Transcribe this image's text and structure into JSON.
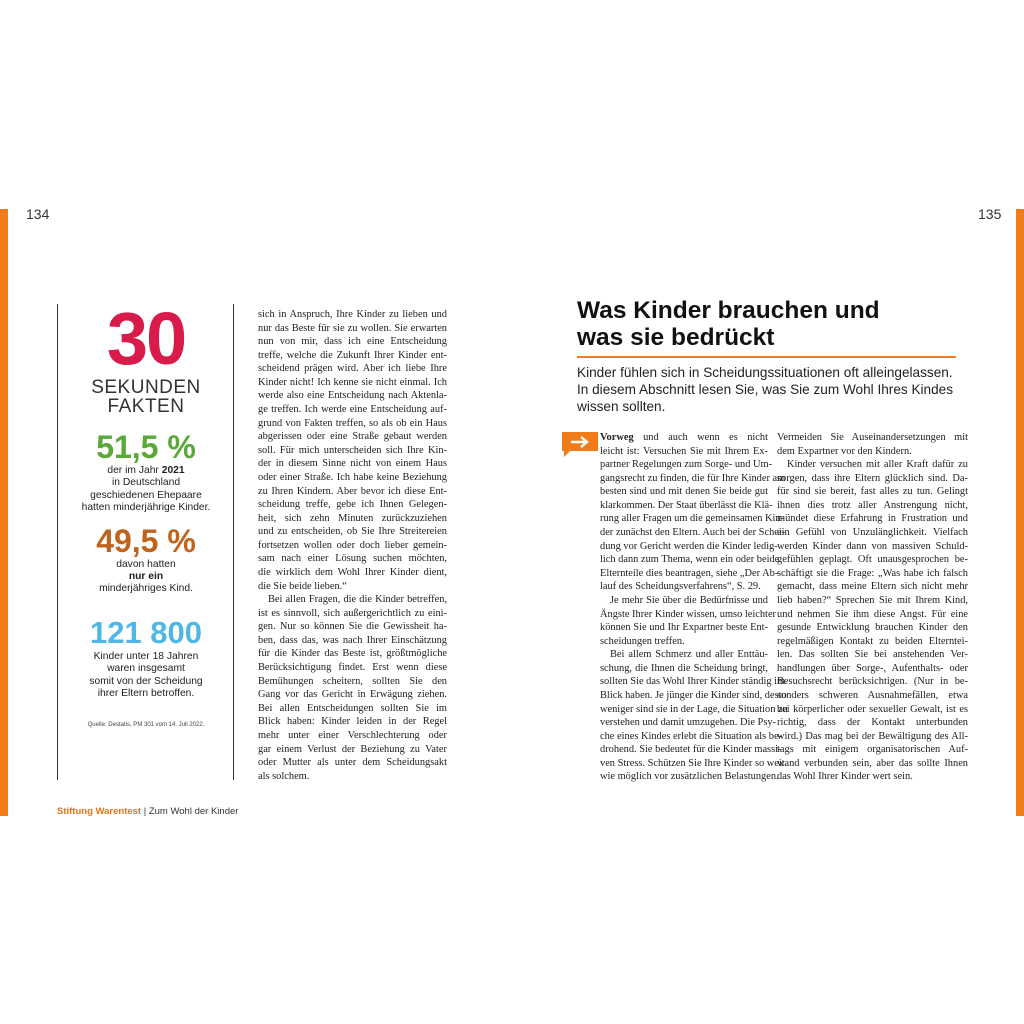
{
  "page_numbers": {
    "left": "134",
    "right": "135"
  },
  "sidebar": {
    "big_number": "30",
    "heading": [
      "SEKUNDEN",
      "FAKTEN"
    ],
    "fact1": {
      "figure": "51,5 %",
      "pre": "der im Jahr",
      "bold": "2021",
      "lines": [
        "in Deutschland",
        "geschiedenen Ehepaare",
        "hatten minderjährige Kinder."
      ]
    },
    "fact2": {
      "figure": "49,5 %",
      "line1": "davon hatten",
      "bold": "nur ein",
      "line3": "minderjähriges Kind."
    },
    "fact3": {
      "figure": "121 800",
      "lines": [
        "Kinder unter 18 Jahren",
        "waren insgesamt",
        "somit von der Scheidung",
        "ihrer Eltern betroffen."
      ]
    },
    "source": "Quelle: Destatis, PM 301 vom 14. Juli 2022."
  },
  "left_column": [
    [
      "sich in Anspruch, Ihre Kinder zu lieben und",
      "nur das Beste für sie zu wollen. Sie erwarten",
      "nun von mir, dass ich eine Entscheidung",
      "treffe, welche die Zukunft Ihrer Kinder ent-",
      "scheidend prägen wird. Aber ich liebe Ihre",
      "Kinder nicht! Ich kenne sie nicht einmal. Ich",
      "werde also eine Entscheidung nach Aktenla-",
      "ge treffen. Ich werde eine Entscheidung auf-",
      "grund von Fakten treffen, so als ob ein Haus",
      "abgerissen oder eine Straße gebaut werden",
      "soll. Für mich unterscheiden sich Ihre Kin-",
      "der in diesem Sinne nicht von einem Haus",
      "oder einer Straße. Ich habe keine Beziehung",
      "zu Ihren Kindern. Aber bevor ich diese Ent-",
      "scheidung treffe, gebe ich Ihnen Gelegen-",
      "heit, sich zehn Minuten zurückzuziehen",
      "und zu entscheiden, ob Sie Ihre Streitereien",
      "fortsetzen wollen oder doch lieber gemein-",
      "sam nach einer Lösung suchen möchten,",
      "die wirklich dem Wohl Ihrer Kinder dient,",
      "die Sie beide lieben.“"
    ],
    [
      "Bei allen Fragen, die die Kinder betreffen,",
      "ist es sinnvoll, sich außergerichtlich zu eini-",
      "gen. Nur so können Sie die Gewissheit ha-",
      "ben, dass das, was nach Ihrer Einschätzung",
      "für die Kinder das Beste ist, größtmögliche",
      "Berücksichtigung findet. Erst wenn diese",
      "Bemühungen scheitern, sollten Sie den",
      "Gang vor das Gericht in Erwägung ziehen.",
      "Bei allen Entscheidungen sollten Sie im",
      "Blick haben: Kinder leiden in der Regel",
      "mehr unter einer Verschlechterung oder",
      "gar einem Verlust der Beziehung zu Vater",
      "oder Mutter als unter dem Scheidungsakt",
      "als solchem."
    ]
  ],
  "title": [
    "Was Kinder brauchen und",
    "was sie bedrückt"
  ],
  "intro": [
    "Kinder fühlen sich in Scheidungssituationen oft alleingelassen.",
    "In diesem Abschnitt lesen Sie, was Sie zum Wohl Ihres Kindes",
    "wissen sollten."
  ],
  "lead": "Vorweg",
  "right_column_1": [
    [
      "und auch wenn es nicht",
      "leicht ist: Versuchen Sie mit Ihrem Ex-",
      "partner Regelungen zum Sorge- und Um-",
      "gangsrecht zu finden, die für Ihre Kinder am",
      "besten sind und mit denen Sie beide gut",
      "klarkommen. Der Staat überlässt die Klä-",
      "rung aller Fragen um die gemeinsamen Kin-",
      "der zunächst den Eltern. Auch bei der Schei-",
      "dung vor Gericht werden die Kinder ledig-",
      "lich dann zum Thema, wenn ein oder beide",
      "Elternteile dies beantragen, siehe „Der Ab-",
      "lauf des Scheidungsverfahrens“, S. 29."
    ],
    [
      "Je mehr Sie über die Bedürfnisse und",
      "Ängste Ihrer Kinder wissen, umso leichter",
      "können Sie und Ihr Expartner beste Ent-",
      "scheidungen treffen."
    ],
    [
      "Bei allem Schmerz und aller Enttäu-",
      "schung, die Ihnen die Scheidung bringt,",
      "sollten Sie das Wohl Ihrer Kinder ständig im",
      "Blick haben. Je jünger die Kinder sind, desto",
      "weniger sind sie in der Lage, die Situation zu",
      "verstehen und damit umzugehen. Die Psy-",
      "che eines Kindes erlebt die Situation als be-",
      "drohend. Sie bedeutet für die Kinder massi-",
      "ven Stress. Schützen Sie Ihre Kinder so weit",
      "wie möglich vor zusätzlichen Belastungen."
    ]
  ],
  "right_column_2": [
    [
      "Vermeiden Sie Auseinandersetzungen mit",
      "dem Expartner vor den Kindern."
    ],
    [
      "Kinder versuchen mit aller Kraft dafür zu",
      "sorgen, dass ihre Eltern glücklich sind. Da-",
      "für sind sie bereit, fast alles zu tun. Gelingt",
      "ihnen dies trotz aller Anstrengung nicht,",
      "mündet diese Erfahrung in Frustration und",
      "ein Gefühl von Unzulänglichkeit. Vielfach",
      "werden Kinder dann von massiven Schuld-",
      "gefühlen geplagt. Oft unausgesprochen be-",
      "schäftigt sie die Frage: „Was habe ich falsch",
      "gemacht, dass meine Eltern sich nicht mehr",
      "lieb haben?“ Sprechen Sie mit Ihrem Kind,",
      "und nehmen Sie ihm diese Angst. Für eine",
      "gesunde Entwicklung brauchen Kinder den",
      "regelmäßigen Kontakt zu beiden Elterntei-",
      "len. Das sollten Sie bei anstehenden Ver-",
      "handlungen über Sorge-, Aufenthalts- oder",
      "Besuchsrecht berücksichtigen. (Nur in be-",
      "sonders schweren Ausnahmefällen, etwa",
      "bei körperlicher oder sexueller Gewalt, ist es",
      "richtig, dass der Kontakt unterbunden",
      "wird.) Das mag bei der Bewältigung des All-",
      "tags mit einigem organisatorischen Auf-",
      "wand verbunden sein, aber das sollte Ihnen",
      "das Wohl Ihrer Kinder wert sein."
    ]
  ],
  "footer": {
    "brand": "Stiftung Warentest",
    "separator": "|",
    "book": "Zum Wohl der Kinder"
  }
}
